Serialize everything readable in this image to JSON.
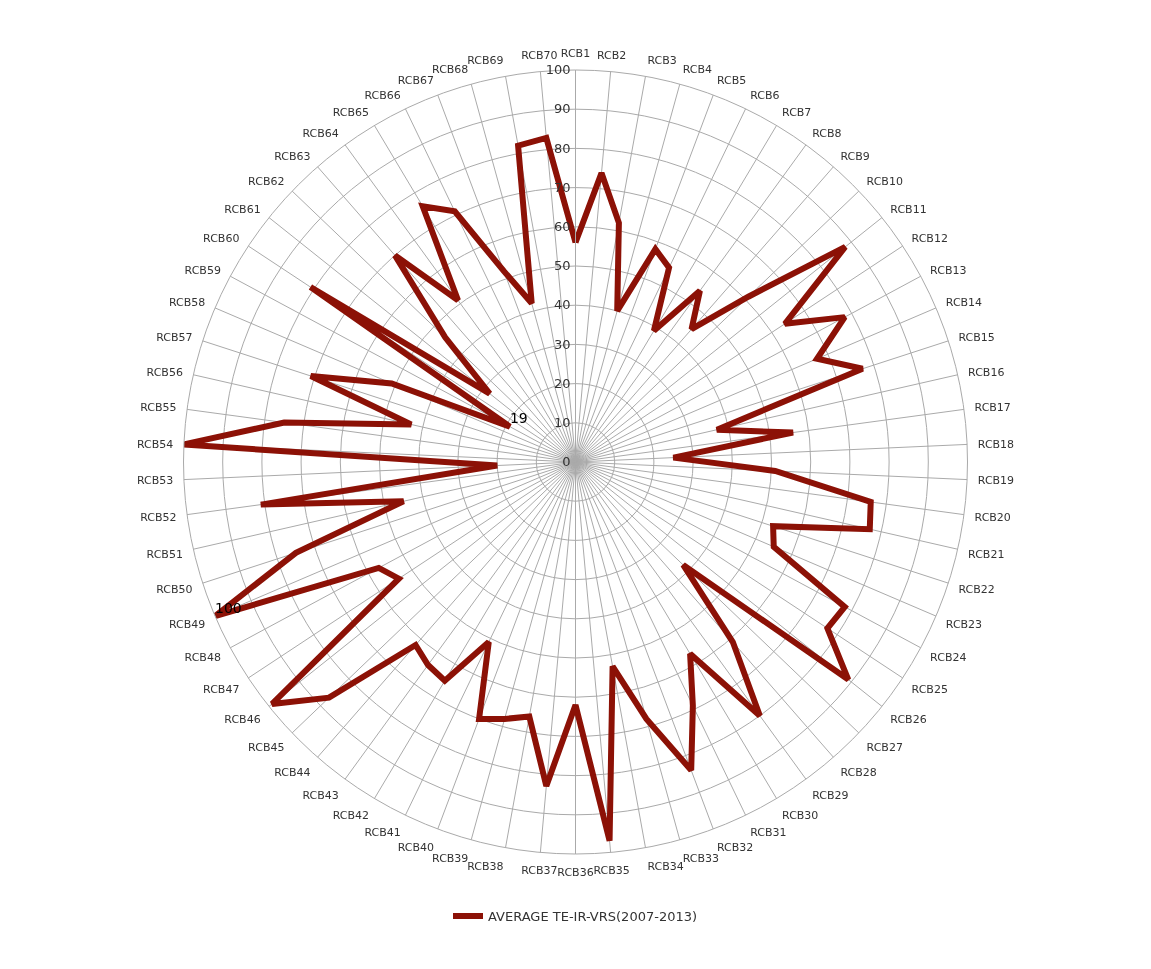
{
  "chart_data": {
    "type": "radar",
    "categories": [
      "RCB1",
      "RCB2",
      "RCB3",
      "RCB4",
      "RCB5",
      "RCB6",
      "RCB7",
      "RCB8",
      "RCB9",
      "RCB10",
      "RCB11",
      "RCB12",
      "RCB13",
      "RCB14",
      "RCB15",
      "RCB16",
      "RCB17",
      "RCB18",
      "RCB19",
      "RCB20",
      "RCB21",
      "RCB22",
      "RCB23",
      "RCB24",
      "RCB25",
      "RCB26",
      "RCB27",
      "RCB28",
      "RCB29",
      "RCB30",
      "RCB31",
      "RCB32",
      "RCB33",
      "RCB34",
      "RCB35",
      "RCB36",
      "RCB37",
      "RCB38",
      "RCB39",
      "RCB40",
      "RCB41",
      "RCB42",
      "RCB43",
      "RCB44",
      "RCB45",
      "RCB46",
      "RCB47",
      "RCB48",
      "RCB49",
      "RCB50",
      "RCB51",
      "RCB52",
      "RCB53",
      "RCB54",
      "RCB55",
      "RCB56",
      "RCB57",
      "RCB58",
      "RCB59",
      "RCB60",
      "RCB61",
      "RCB62",
      "RCB63",
      "RCB64",
      "RCB65",
      "RCB66",
      "RCB67",
      "RCB68",
      "RCB69",
      "RCB70"
    ],
    "series": [
      {
        "name": "AVERAGE TE-IR-VRS(2007-2013)",
        "color": "#8c1106",
        "values": [
          56,
          74,
          62,
          40,
          58,
          55,
          39,
          54,
          45,
          61,
          88,
          64,
          78,
          67,
          77,
          37,
          56,
          25,
          51,
          76,
          77,
          53,
          55,
          78,
          77,
          89,
          38,
          61,
          80,
          57,
          69,
          84,
          68,
          53,
          97,
          62,
          83,
          66,
          68,
          70,
          51,
          65,
          64,
          62,
          87,
          99,
          54,
          57,
          100,
          75,
          45,
          81,
          20,
          100,
          75,
          43,
          71,
          51,
          19,
          81,
          28,
          46,
          70,
          51,
          76,
          71,
          52,
          42,
          82,
          83
        ],
        "value_labels": [
          null,
          null,
          null,
          null,
          null,
          null,
          null,
          null,
          null,
          null,
          null,
          null,
          null,
          null,
          null,
          null,
          null,
          null,
          null,
          null,
          null,
          null,
          null,
          null,
          null,
          null,
          null,
          null,
          null,
          null,
          null,
          null,
          null,
          null,
          null,
          null,
          null,
          null,
          null,
          null,
          null,
          null,
          null,
          null,
          null,
          null,
          null,
          null,
          "100",
          null,
          null,
          null,
          null,
          null,
          null,
          null,
          null,
          null,
          "19",
          null,
          null,
          null,
          null,
          null,
          null,
          null,
          null,
          null,
          null,
          null
        ]
      }
    ],
    "ylim": [
      0,
      100
    ],
    "yticks": [
      0,
      10,
      20,
      30,
      40,
      50,
      60,
      70,
      80,
      90,
      100
    ],
    "grid": true,
    "legend": "bottom",
    "marker": "none",
    "line_style": "solid"
  }
}
